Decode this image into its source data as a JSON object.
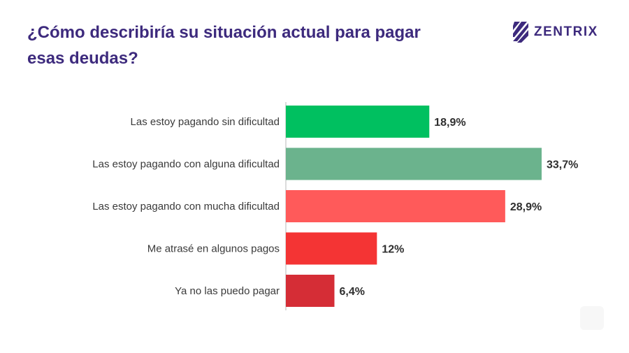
{
  "title": "¿Cómo describiría su situación actual para pagar esas deudas?",
  "brand": {
    "name": "ZENTRIX",
    "icon": "zentrix-logo-icon",
    "color": "#3d2a7d"
  },
  "chart_data": {
    "type": "bar",
    "orientation": "horizontal",
    "title": "¿Cómo describiría su situación actual para pagar esas deudas?",
    "categories": [
      "Las estoy pagando sin dificultad",
      "Las estoy pagando con alguna dificultad",
      "Las estoy pagando con mucha dificultad",
      "Me atrasé en algunos pagos",
      "Ya no las puedo pagar"
    ],
    "values": [
      18.9,
      33.7,
      28.9,
      12,
      6.4
    ],
    "value_labels": [
      "18,9%",
      "33,7%",
      "28,9%",
      "12%",
      "6,4%"
    ],
    "colors": [
      "#00c060",
      "#6bb38d",
      "#ff5a5a",
      "#f43434",
      "#d52d36"
    ],
    "xlim": [
      0,
      33.7
    ],
    "unit": "%",
    "grid": false,
    "legend": "none"
  }
}
